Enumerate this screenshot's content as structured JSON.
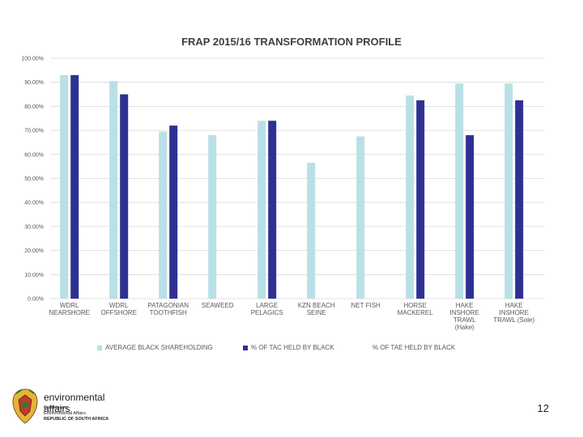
{
  "chart_data": {
    "type": "bar",
    "title": "FRAP 2015/16 TRANSFORMATION PROFILE",
    "categories": [
      [
        "WDRL",
        "NEARSHORE"
      ],
      [
        "WDRL",
        "OFFSHORE"
      ],
      [
        "PATAGONIAN",
        "TOOTHFISH"
      ],
      [
        "SEAWEED"
      ],
      [
        "LARGE",
        "PELAGICS"
      ],
      [
        "KZN BEACH",
        "SEINE"
      ],
      [
        "NET FISH"
      ],
      [
        "HORSE",
        "MACKEREL"
      ],
      [
        "HAKE",
        "INSHORE",
        "TRAWL",
        "(Hake)"
      ],
      [
        "HAKE",
        "INSHORE",
        "TRAWL (Sole)"
      ]
    ],
    "series": [
      {
        "name": "AVERAGE BLACK SHAREHOLDING",
        "color": "#b8e0e6",
        "values": [
          93,
          90.5,
          69.5,
          68,
          74,
          56.5,
          67.5,
          84.5,
          89.5,
          89.5
        ]
      },
      {
        "name": "% OF TAC HELD BY BLACK",
        "color": "#2e3192",
        "values": [
          93,
          85,
          72,
          null,
          74,
          null,
          null,
          82.5,
          68,
          82.5
        ]
      },
      {
        "name": "% OF TAE HELD BY BLACK",
        "color": "#ffffff",
        "values": [
          null,
          null,
          null,
          null,
          null,
          null,
          null,
          null,
          null,
          null
        ]
      }
    ],
    "ylim": [
      0,
      100
    ],
    "yticks": [
      "0.00%",
      "10.00%",
      "20.00%",
      "30.00%",
      "40.00%",
      "50.00%",
      "60.00%",
      "70.00%",
      "80.00%",
      "90.00%",
      "100.00%"
    ],
    "grid": true,
    "legend_position": "bottom",
    "xlabel": "",
    "ylabel": ""
  },
  "footer": {
    "logo_title": "environmental affairs",
    "logo_line1": "Department:",
    "logo_line2": "Environmental Affairs",
    "logo_line3": "REPUBLIC OF SOUTH AFRICA",
    "page_number": "12"
  }
}
